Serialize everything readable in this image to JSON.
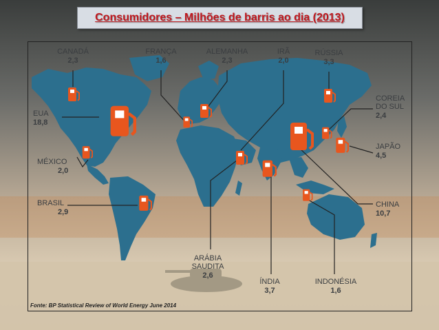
{
  "title": "Consumidores – Milhões de barris ao dia (2013)",
  "source": "Fonte: BP Statistical Review of World Energy June 2014",
  "colors": {
    "land": "#2c6f8e",
    "pump": "#e8561e",
    "line": "#222222",
    "text": "#3a3d40",
    "title": "#c0181e"
  },
  "icon": "fuel-pump-icon",
  "countries": [
    {
      "id": "canada",
      "name": "CANADÁ",
      "value": "2,3"
    },
    {
      "id": "franca",
      "name": "FRANÇA",
      "value": "1,6"
    },
    {
      "id": "alemanha",
      "name": "ALEMANHA",
      "value": "2,3"
    },
    {
      "id": "ira",
      "name": "IRÃ",
      "value": "2,0"
    },
    {
      "id": "russia",
      "name": "RÚSSIA",
      "value": "3,3"
    },
    {
      "id": "coreia",
      "name": "COREIA",
      "name2": "DO SUL",
      "value": "2,4"
    },
    {
      "id": "eua",
      "name": "EUA",
      "value": "18,8"
    },
    {
      "id": "japao",
      "name": "JAPÃO",
      "value": "4,5"
    },
    {
      "id": "mexico",
      "name": "MÉXICO",
      "value": "2,0"
    },
    {
      "id": "brasil",
      "name": "BRASIL",
      "value": "2,9"
    },
    {
      "id": "china",
      "name": "CHINA",
      "value": "10,7"
    },
    {
      "id": "arabia",
      "name": "ARÁBIA",
      "name2": "SAUDITA",
      "value": "2,6"
    },
    {
      "id": "india",
      "name": "ÍNDIA",
      "value": "3,7"
    },
    {
      "id": "indonesia",
      "name": "INDONÉSIA",
      "value": "1,6"
    }
  ]
}
